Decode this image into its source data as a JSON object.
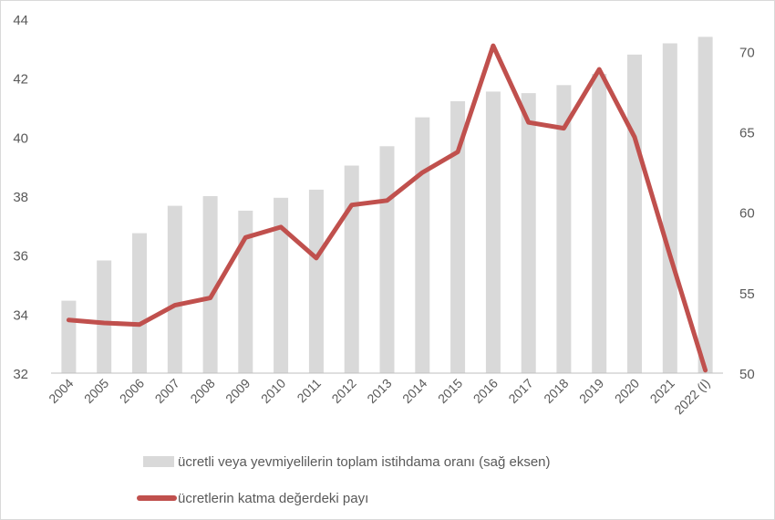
{
  "chart_data": {
    "type": "bar+line",
    "categories": [
      "2004",
      "2005",
      "2006",
      "2007",
      "2008",
      "2009",
      "2010",
      "2011",
      "2012",
      "2013",
      "2014",
      "2015",
      "2016",
      "2017",
      "2018",
      "2019",
      "2020",
      "2021",
      "2022 (I)"
    ],
    "series": [
      {
        "name": "ücretli veya yevmiyelilerin toplam istihdama oranı (sağ eksen)",
        "type": "bar",
        "axis": "right",
        "color": "#d9d9d9",
        "values": [
          54.5,
          57.0,
          58.7,
          60.4,
          61.0,
          60.1,
          60.9,
          61.4,
          62.9,
          64.1,
          65.9,
          66.9,
          67.5,
          67.4,
          67.9,
          68.6,
          69.8,
          70.5,
          70.9
        ]
      },
      {
        "name": "ücretlerin katma değerdeki payı",
        "type": "line",
        "axis": "left",
        "color": "#c0504d",
        "values": [
          33.8,
          33.7,
          33.65,
          34.3,
          34.55,
          36.6,
          36.95,
          35.9,
          37.7,
          37.85,
          38.8,
          39.5,
          43.1,
          40.5,
          40.3,
          42.3,
          40.0,
          36.0,
          32.1
        ]
      }
    ],
    "y_left": {
      "min": 32,
      "max": 44,
      "ticks": [
        "32",
        "34",
        "36",
        "38",
        "40",
        "42",
        "44"
      ]
    },
    "y_right": {
      "min": 50,
      "max": 72,
      "ticks": [
        "50",
        "55",
        "60",
        "65",
        "70"
      ]
    },
    "grid": false,
    "legend_position": "bottom"
  }
}
